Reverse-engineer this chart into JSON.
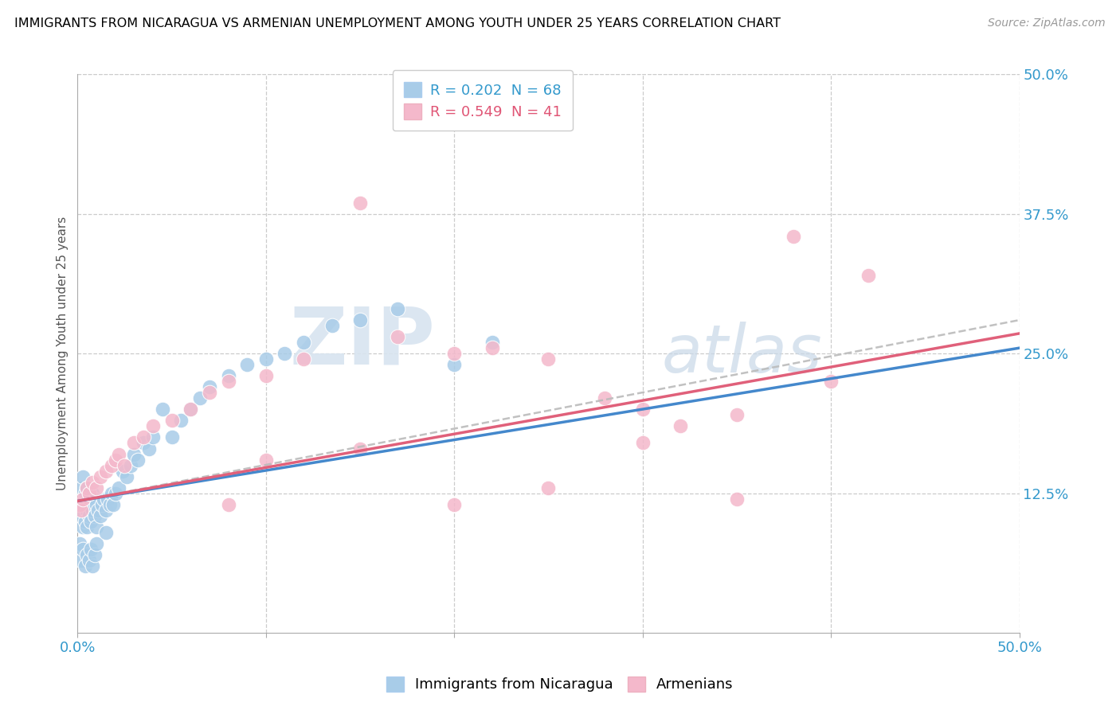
{
  "title": "IMMIGRANTS FROM NICARAGUA VS ARMENIAN UNEMPLOYMENT AMONG YOUTH UNDER 25 YEARS CORRELATION CHART",
  "source": "Source: ZipAtlas.com",
  "ylabel": "Unemployment Among Youth under 25 years",
  "xlim": [
    0,
    0.5
  ],
  "ylim": [
    0,
    0.5
  ],
  "xticks": [
    0.0,
    0.1,
    0.2,
    0.3,
    0.4,
    0.5
  ],
  "xtick_labels": [
    "0.0%",
    "",
    "",
    "",
    "",
    "50.0%"
  ],
  "ytick_labels_right": [
    "12.5%",
    "25.0%",
    "37.5%",
    "50.0%"
  ],
  "yticks_right": [
    0.125,
    0.25,
    0.375,
    0.5
  ],
  "blue_color": "#a8cce8",
  "pink_color": "#f4b8cb",
  "blue_line_color": "#4488cc",
  "pink_line_color": "#e0607a",
  "dashed_line_color": "#bbbbbb",
  "watermark_zip": "ZIP",
  "watermark_atlas": "atlas",
  "blue_x": [
    0.001,
    0.002,
    0.002,
    0.003,
    0.003,
    0.003,
    0.004,
    0.004,
    0.005,
    0.005,
    0.005,
    0.006,
    0.006,
    0.007,
    0.007,
    0.008,
    0.008,
    0.009,
    0.009,
    0.01,
    0.01,
    0.011,
    0.012,
    0.013,
    0.014,
    0.015,
    0.016,
    0.017,
    0.018,
    0.019,
    0.02,
    0.022,
    0.024,
    0.026,
    0.028,
    0.03,
    0.032,
    0.035,
    0.038,
    0.04,
    0.045,
    0.05,
    0.055,
    0.06,
    0.065,
    0.07,
    0.08,
    0.09,
    0.1,
    0.11,
    0.12,
    0.135,
    0.15,
    0.17,
    0.2,
    0.22,
    0.001,
    0.002,
    0.003,
    0.004,
    0.005,
    0.006,
    0.007,
    0.008,
    0.009,
    0.01,
    0.015,
    0.25
  ],
  "blue_y": [
    0.115,
    0.105,
    0.13,
    0.095,
    0.115,
    0.14,
    0.1,
    0.125,
    0.095,
    0.11,
    0.13,
    0.105,
    0.12,
    0.1,
    0.115,
    0.11,
    0.125,
    0.105,
    0.12,
    0.095,
    0.115,
    0.11,
    0.105,
    0.115,
    0.12,
    0.11,
    0.12,
    0.115,
    0.125,
    0.115,
    0.125,
    0.13,
    0.145,
    0.14,
    0.15,
    0.16,
    0.155,
    0.17,
    0.165,
    0.175,
    0.2,
    0.175,
    0.19,
    0.2,
    0.21,
    0.22,
    0.23,
    0.24,
    0.245,
    0.25,
    0.26,
    0.275,
    0.28,
    0.29,
    0.24,
    0.26,
    0.08,
    0.065,
    0.075,
    0.06,
    0.07,
    0.065,
    0.075,
    0.06,
    0.07,
    0.08,
    0.09,
    0.46
  ],
  "pink_x": [
    0.001,
    0.002,
    0.003,
    0.005,
    0.006,
    0.008,
    0.01,
    0.012,
    0.015,
    0.018,
    0.02,
    0.022,
    0.025,
    0.03,
    0.035,
    0.04,
    0.05,
    0.06,
    0.07,
    0.08,
    0.1,
    0.12,
    0.15,
    0.17,
    0.2,
    0.22,
    0.25,
    0.28,
    0.3,
    0.32,
    0.35,
    0.38,
    0.4,
    0.42,
    0.2,
    0.15,
    0.1,
    0.08,
    0.25,
    0.3,
    0.35
  ],
  "pink_y": [
    0.115,
    0.11,
    0.12,
    0.13,
    0.125,
    0.135,
    0.13,
    0.14,
    0.145,
    0.15,
    0.155,
    0.16,
    0.15,
    0.17,
    0.175,
    0.185,
    0.19,
    0.2,
    0.215,
    0.225,
    0.23,
    0.245,
    0.165,
    0.265,
    0.25,
    0.255,
    0.245,
    0.21,
    0.2,
    0.185,
    0.195,
    0.355,
    0.225,
    0.32,
    0.115,
    0.385,
    0.155,
    0.115,
    0.13,
    0.17,
    0.12
  ],
  "blue_line_x0": 0.0,
  "blue_line_x1": 0.5,
  "blue_line_y0": 0.118,
  "blue_line_y1": 0.255,
  "pink_line_x0": 0.0,
  "pink_line_x1": 0.5,
  "pink_line_y0": 0.118,
  "pink_line_y1": 0.268,
  "dashed_line_y0": 0.118,
  "dashed_line_y1": 0.28
}
